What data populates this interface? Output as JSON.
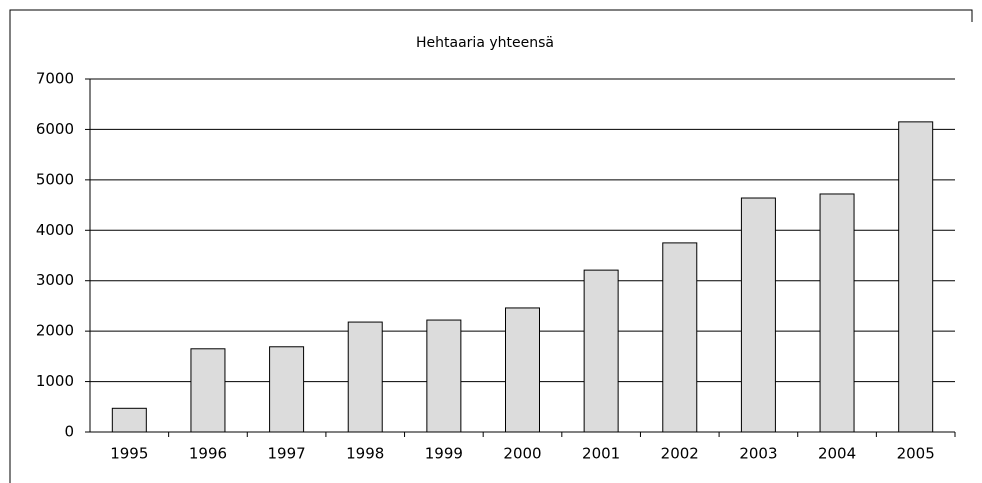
{
  "chart_data": {
    "type": "bar",
    "title": "Hehtaaria yhteensä",
    "categories": [
      "1995",
      "1996",
      "1997",
      "1998",
      "1999",
      "2000",
      "2001",
      "2002",
      "2003",
      "2004",
      "2005"
    ],
    "values": [
      470,
      1650,
      1690,
      2180,
      2220,
      2460,
      3210,
      3750,
      4640,
      4720,
      6150
    ],
    "color": "#dcdcdc",
    "ylim": [
      0,
      7000
    ],
    "yticks": [
      0,
      1000,
      2000,
      3000,
      4000,
      5000,
      6000,
      7000
    ],
    "grid": true
  }
}
